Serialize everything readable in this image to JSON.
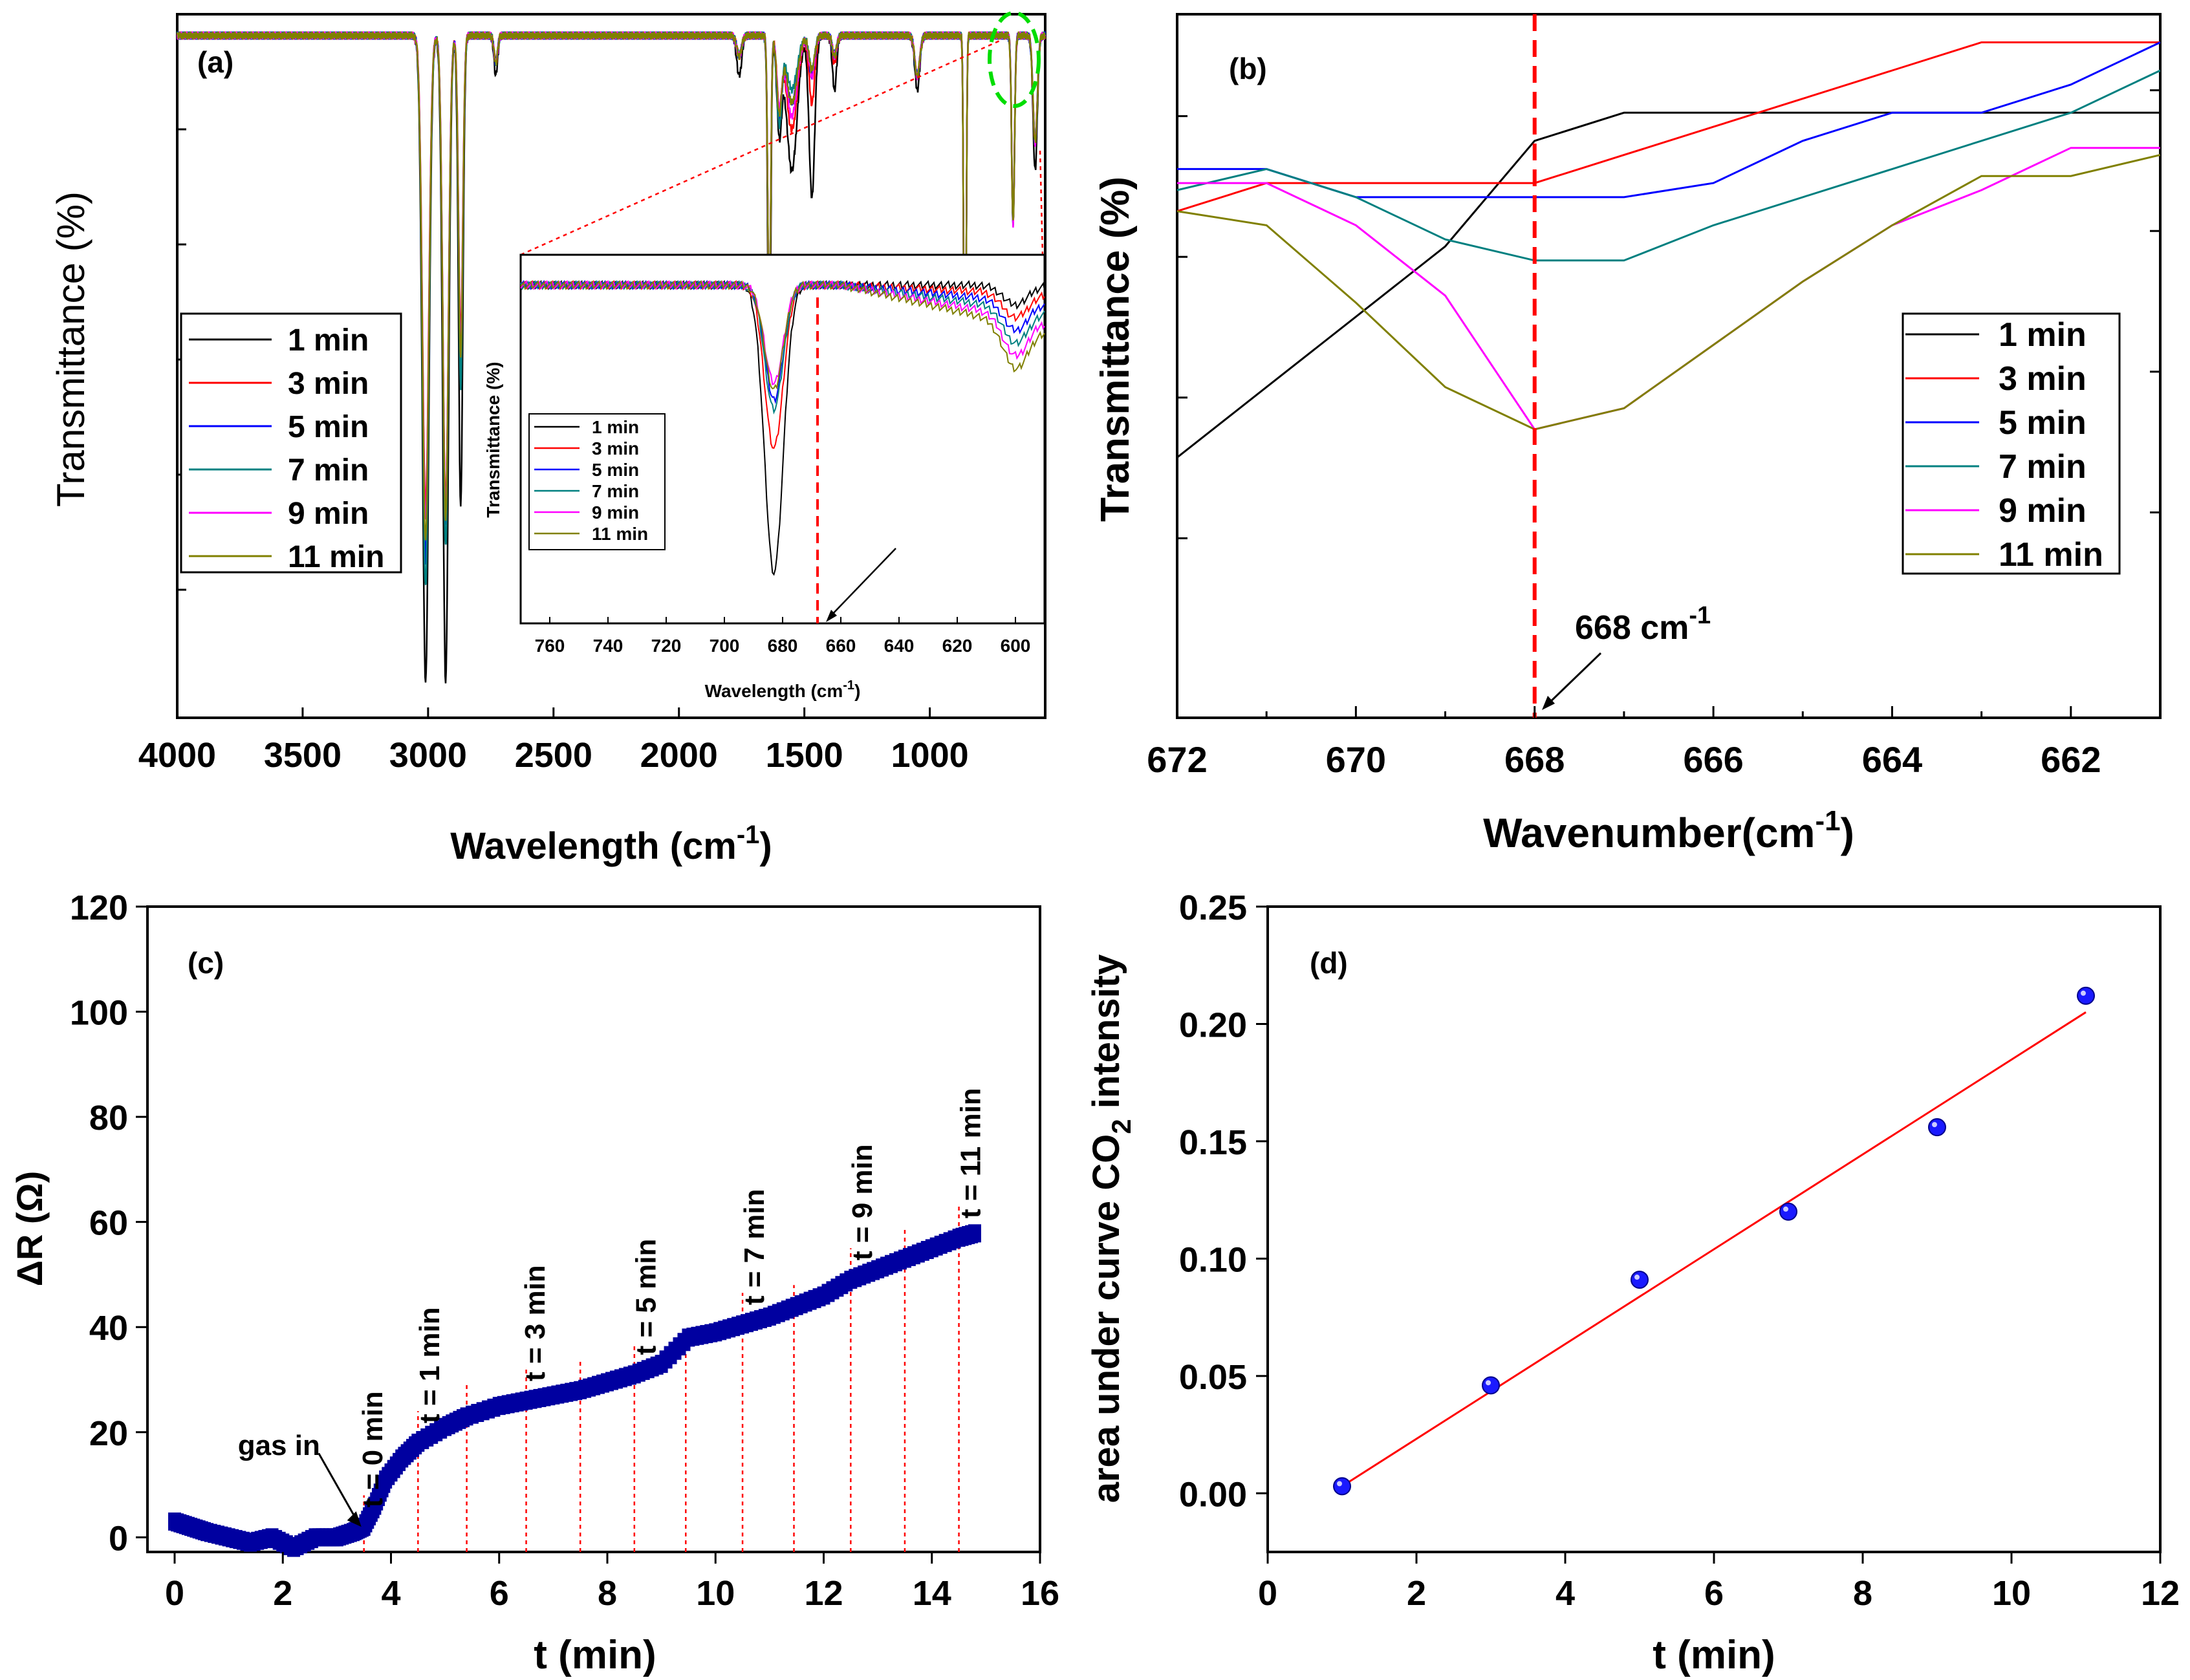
{
  "colors": {
    "1 min": "#000000",
    "3 min": "#ff0000",
    "5 min": "#0000ff",
    "7 min": "#008080",
    "9 min": "#ff00ff",
    "11 min": "#808000",
    "marker": "#ff0000",
    "circle": "#00dd00",
    "fit": "#ff0000",
    "points": "#1a1aff"
  },
  "chart_data": [
    {
      "panel": "(a)",
      "type": "line",
      "xlabel_main": "Wavelength (cm",
      "xlabel_sup": "-1",
      "xlabel_end": ")",
      "ylabel": "Transmittance (%)",
      "xlim": [
        4000,
        540
      ],
      "x_ticks": [
        "4000",
        "3500",
        "3000",
        "2500",
        "2000",
        "1500",
        "1000"
      ],
      "x_tick_values": [
        4000,
        3500,
        3000,
        2500,
        2000,
        1500,
        1000
      ],
      "ylim": [
        0,
        100
      ],
      "legend": [
        "1 min",
        "3 min",
        "5 min",
        "7 min",
        "9 min",
        "11 min"
      ],
      "baseline": 98,
      "peaks": [
        {
          "center": 3010,
          "width": 18,
          "depths": [
            96,
            70,
            78,
            82,
            72,
            75
          ]
        },
        {
          "center": 2930,
          "width": 16,
          "depths": [
            96,
            70,
            72,
            76,
            70,
            72
          ]
        },
        {
          "center": 2870,
          "width": 12,
          "depths": [
            70,
            45,
            50,
            52,
            46,
            48
          ]
        },
        {
          "center": 2730,
          "width": 10,
          "depths": [
            6,
            4,
            4,
            4,
            4,
            4
          ]
        },
        {
          "center": 1760,
          "width": 14,
          "depths": [
            6,
            3,
            3,
            3,
            3,
            3
          ]
        },
        {
          "center": 1640,
          "width": 8,
          "depths": [
            58,
            44,
            44,
            44,
            44,
            44
          ]
        },
        {
          "center": 1600,
          "width": 14,
          "depths": [
            14,
            10,
            12,
            13,
            10,
            11
          ]
        },
        {
          "center": 1550,
          "width": 30,
          "depths": [
            20,
            14,
            10,
            8,
            12,
            10
          ]
        },
        {
          "center": 1470,
          "width": 16,
          "depths": [
            24,
            10,
            6,
            5,
            6,
            5
          ]
        },
        {
          "center": 1380,
          "width": 12,
          "depths": [
            8,
            4,
            3,
            3,
            3,
            3
          ]
        },
        {
          "center": 1050,
          "width": 14,
          "depths": [
            8,
            6,
            6,
            6,
            6,
            6
          ]
        },
        {
          "center": 860,
          "width": 6,
          "depths": [
            82,
            82,
            82,
            82,
            82,
            82
          ]
        },
        {
          "center": 668,
          "width": 8,
          "depths": [
            28,
            28,
            28,
            28,
            28,
            28
          ]
        },
        {
          "center": 580,
          "width": 12,
          "depths": [
            20,
            16,
            16,
            16,
            16,
            16
          ]
        }
      ],
      "inset": {
        "xlabel_main": "Wavelength (cm",
        "xlabel_sup": "-1",
        "xlabel_end": ")",
        "ylabel": "Transmittance (%)",
        "xlim": [
          770,
          590
        ],
        "x_ticks": [
          "760",
          "740",
          "720",
          "700",
          "680",
          "660",
          "640",
          "620",
          "600"
        ],
        "x_tick_values": [
          760,
          740,
          720,
          700,
          680,
          660,
          640,
          620,
          600
        ],
        "ylim": [
          0,
          100
        ],
        "marker_x": 668,
        "legend": [
          "1 min",
          "3 min",
          "5 min",
          "7 min",
          "9 min",
          "11 min"
        ],
        "peak_center": 683,
        "peak_depths": [
          88,
          50,
          35,
          38,
          30,
          32
        ]
      }
    },
    {
      "panel": "(b)",
      "type": "line",
      "xlabel_main": "Wavenumber(cm",
      "xlabel_sup": "-1",
      "xlabel_end": ")",
      "ylabel": "Transmittance  (%)",
      "xlim": [
        672,
        661
      ],
      "x_ticks": [
        "672",
        "670",
        "668",
        "666",
        "664",
        "662"
      ],
      "x_tick_values": [
        672,
        670,
        668,
        666,
        664,
        662
      ],
      "ylim": [
        0,
        100
      ],
      "marker_x": 668,
      "annotation_main": "668 cm",
      "annotation_sup": "-1",
      "legend": [
        "1 min",
        "3 min",
        "5 min",
        "7 min",
        "9 min",
        "11 min"
      ],
      "x": [
        672,
        671,
        670,
        669,
        668,
        667,
        666,
        665,
        664,
        663,
        662,
        661
      ],
      "series": [
        {
          "name": "1 min",
          "values": [
            37,
            47,
            57,
            67,
            82,
            86,
            86,
            86,
            86,
            86,
            86,
            86
          ]
        },
        {
          "name": "3 min",
          "values": [
            72,
            76,
            76,
            76,
            76,
            80,
            84,
            88,
            92,
            96,
            96,
            96
          ]
        },
        {
          "name": "5 min",
          "values": [
            78,
            78,
            74,
            74,
            74,
            74,
            76,
            82,
            86,
            86,
            90,
            96
          ]
        },
        {
          "name": "7 min",
          "values": [
            75,
            78,
            74,
            68,
            65,
            65,
            70,
            74,
            78,
            82,
            86,
            92
          ]
        },
        {
          "name": "9 min",
          "values": [
            76,
            76,
            70,
            60,
            41,
            44,
            53,
            62,
            70,
            75,
            81,
            81
          ]
        },
        {
          "name": "11 min",
          "values": [
            72,
            70,
            59,
            47,
            41,
            44,
            53,
            62,
            70,
            77,
            77,
            80
          ]
        }
      ]
    },
    {
      "panel": "(c)",
      "type": "scatter",
      "xlabel": "t (min)",
      "ylabel": "ΔR (Ω)",
      "xlim": [
        0,
        16
      ],
      "ylim": [
        0,
        120
      ],
      "x_ticks": [
        "0",
        "2",
        "4",
        "6",
        "8",
        "10",
        "12",
        "14",
        "16"
      ],
      "x_tick_values": [
        0,
        2,
        4,
        6,
        8,
        10,
        12,
        14,
        16
      ],
      "y_ticks": [
        "0",
        "20",
        "40",
        "60",
        "80",
        "100",
        "120"
      ],
      "y_tick_values": [
        0,
        20,
        40,
        60,
        80,
        100,
        120
      ],
      "gas_in_label": "gas in",
      "gas_in_t": 3.5,
      "curve_x": [
        0,
        0.3,
        0.6,
        1.0,
        1.4,
        1.8,
        2.2,
        2.6,
        3.0,
        3.3,
        3.5,
        3.7,
        3.9,
        4.2,
        4.5,
        5.0,
        5.4,
        6.0,
        6.5,
        7.0,
        7.5,
        8.0,
        8.5,
        9.0,
        9.5,
        10.0,
        10.5,
        11.0,
        11.5,
        12.0,
        12.5,
        13.0,
        13.5,
        14.0,
        14.5,
        14.85
      ],
      "curve_y": [
        3,
        2,
        1,
        0,
        -1,
        0,
        -2,
        0,
        0,
        1,
        2,
        6,
        11,
        15,
        18,
        21,
        23,
        25,
        26,
        27,
        28,
        29.5,
        31,
        33,
        38,
        39,
        40.5,
        42,
        44,
        46,
        49,
        51,
        53,
        55,
        57,
        58
      ],
      "dashed_lines_t": [
        3.5,
        4.5,
        5.4,
        6.5,
        7.5,
        8.5,
        9.45,
        10.5,
        11.45,
        12.5,
        13.5,
        14.5
      ],
      "time_labels": [
        {
          "text": "t = 0 min",
          "t": 3.65
        },
        {
          "text": "t = 1 min",
          "t": 4.7
        },
        {
          "text": "t = 3 min",
          "t": 6.65
        },
        {
          "text": "t = 5 min",
          "t": 8.7
        },
        {
          "text": "t = 7 min",
          "t": 10.7
        },
        {
          "text": "t = 9 min",
          "t": 12.7
        },
        {
          "text": "t = 11 min",
          "t": 14.7
        }
      ]
    },
    {
      "panel": "(d)",
      "type": "scatter",
      "xlabel": "t (min)",
      "ylabel_main": "area under curve CO",
      "ylabel_sub": "2",
      "ylabel_end": " intensity",
      "xlim": [
        0,
        12
      ],
      "ylim": [
        -0.025,
        0.25
      ],
      "x_ticks": [
        "0",
        "2",
        "4",
        "6",
        "8",
        "10",
        "12"
      ],
      "x_tick_values": [
        0,
        2,
        4,
        6,
        8,
        10,
        12
      ],
      "y_ticks": [
        "0.00",
        "0.05",
        "0.10",
        "0.15",
        "0.20",
        "0.25"
      ],
      "y_tick_values": [
        0,
        0.05,
        0.1,
        0.15,
        0.2,
        0.25
      ],
      "x": [
        1,
        3,
        5,
        7,
        9,
        11
      ],
      "y": [
        0.003,
        0.046,
        0.091,
        0.12,
        0.156,
        0.212
      ],
      "fit_x": [
        1,
        11
      ],
      "fit_y": [
        0.003,
        0.205
      ]
    }
  ]
}
